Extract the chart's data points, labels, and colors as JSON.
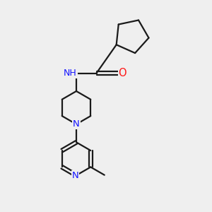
{
  "background_color": "#efefef",
  "bond_color": "#1a1a1a",
  "N_color": "#1414ff",
  "O_color": "#ff1414",
  "H_color": "#3daaaa",
  "bond_width": 1.6,
  "font_size_atom": 9.5,
  "fig_size": [
    3.0,
    3.0
  ],
  "dpi": 100,
  "xlim": [
    0,
    10
  ],
  "ylim": [
    0,
    10
  ]
}
